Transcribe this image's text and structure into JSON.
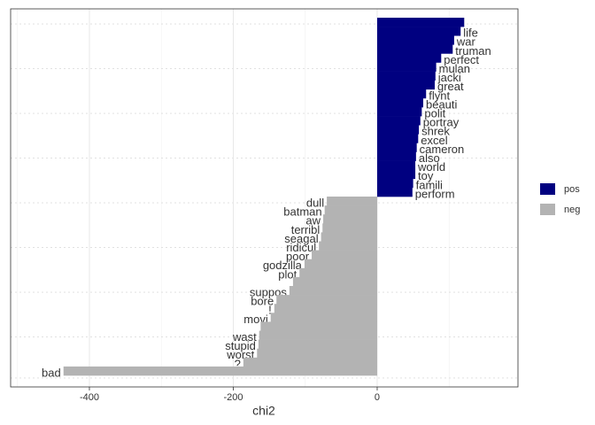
{
  "chart_data": {
    "type": "bar",
    "orientation": "horizontal",
    "x_label": "chi2",
    "categories": [
      null,
      "life",
      "war",
      "truman",
      "perfect",
      "mulan",
      "jacki",
      "great",
      "flynt",
      "beauti",
      "polit",
      "portray",
      "shrek",
      "excel",
      "cameron",
      "also",
      "world",
      "toy",
      "famili",
      "perform",
      "dull",
      "batman",
      "aw",
      "terribl",
      "seagal",
      "ridicul",
      "poor",
      "godzilla",
      "plot",
      null,
      "suppos",
      "bore",
      "!",
      "movi",
      null,
      "wast",
      "stupid",
      "worst",
      "?",
      "bad"
    ],
    "series": [
      {
        "name": "pos",
        "color": "#000080",
        "values": [
          121,
          116,
          107,
          105,
          89,
          82,
          81,
          80,
          68,
          64,
          62,
          60,
          58,
          57,
          55,
          54,
          53,
          53,
          50,
          49,
          null,
          null,
          null,
          null,
          null,
          null,
          null,
          null,
          null,
          null,
          null,
          null,
          null,
          null,
          null,
          null,
          null,
          null,
          null,
          null
        ]
      },
      {
        "name": "neg",
        "color": "#b3b3b3",
        "values": [
          null,
          null,
          null,
          null,
          null,
          null,
          null,
          null,
          null,
          null,
          null,
          null,
          null,
          null,
          null,
          null,
          null,
          null,
          null,
          null,
          -70,
          -73,
          -75,
          -76,
          -78,
          -81,
          -91,
          -101,
          -108,
          -117,
          -122,
          -140,
          -143,
          -148,
          -162,
          -164,
          -165,
          -167,
          -186,
          -436
        ]
      }
    ],
    "xlim": [
      -509.5,
      195.7
    ],
    "xticks": [
      -400,
      -200,
      0
    ],
    "grid": true,
    "legend": "right"
  }
}
